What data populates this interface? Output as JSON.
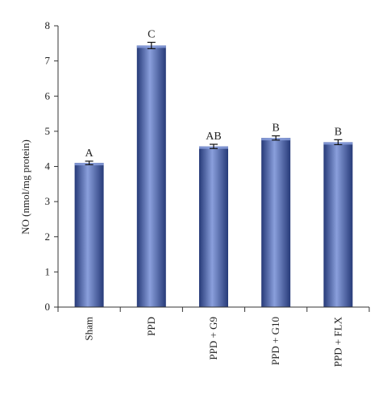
{
  "chart_data": {
    "type": "bar",
    "categories": [
      "Sham",
      "PPD",
      "PPD + G9",
      "PPD + G10",
      "PPD + FLX"
    ],
    "values": [
      4.1,
      7.44,
      4.57,
      4.81,
      4.69
    ],
    "errors": [
      0.05,
      0.09,
      0.06,
      0.06,
      0.07
    ],
    "significance": [
      "A",
      "C",
      "AB",
      "B",
      "B"
    ],
    "ylabel": "NO (nmol/mg protein)",
    "xlabel": "",
    "title": "",
    "ylim": [
      0,
      8
    ],
    "yticks": [
      0,
      1,
      2,
      3,
      4,
      5,
      6,
      7,
      8
    ],
    "grid": false,
    "bar_color": "#3b55a0",
    "bar_highlight": "#8a9fdc",
    "bar_shadow": "#263a78"
  }
}
